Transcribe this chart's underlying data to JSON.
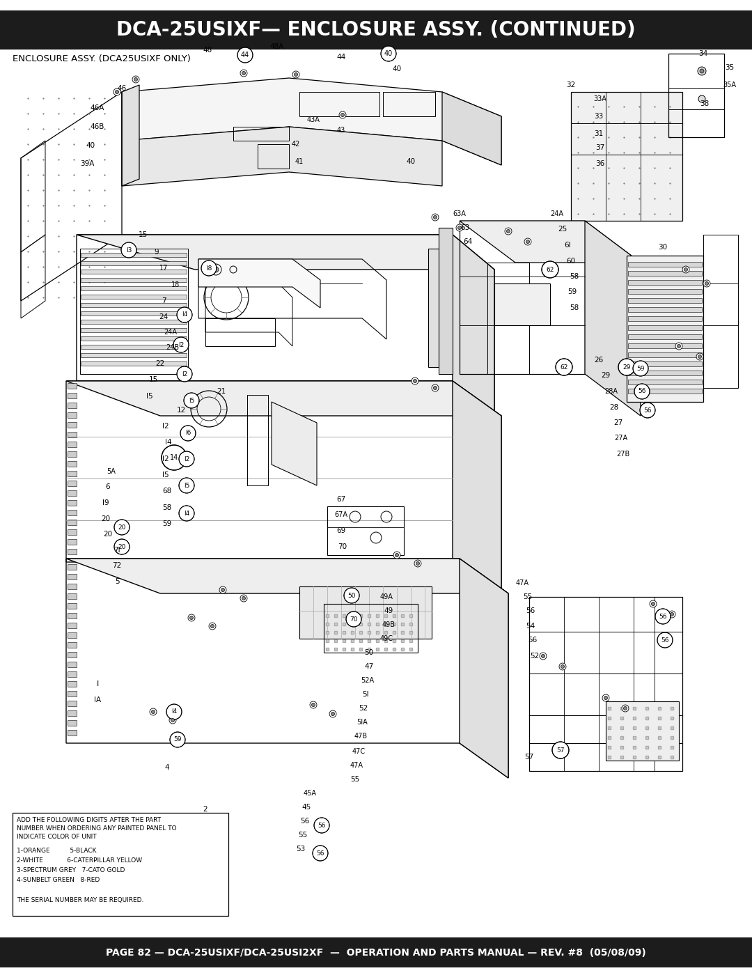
{
  "title_text": "DCA-25USIXF— ENCLOSURE ASSY. (CONTINUED)",
  "title_bg": "#1c1c1c",
  "title_color": "#ffffff",
  "title_fontsize": 20,
  "subtitle_text": "ENCLOSURE ASSY. (DCA25USIXF ONLY)",
  "subtitle_fontsize": 9.5,
  "footer_text": "PAGE 82 — DCA-25USIXF/DCA-25USI2XF  —  OPERATION AND PARTS MANUAL — REV. #8  (05/08/09)",
  "footer_bg": "#1c1c1c",
  "footer_color": "#ffffff",
  "footer_fontsize": 10,
  "legend_line1": "ADD THE FOLLOWING DIGITS AFTER THE PART",
  "legend_line2": "NUMBER WHEN ORDERING ANY PAINTED PANEL TO",
  "legend_line3": "INDICATE COLOR OF UNIT",
  "legend_line4": "1-ORANGE          5-BLACK",
  "legend_line5": "2-WHITE            6-CATERPILLAR YELLOW",
  "legend_line6": "3-SPECTRUM GREY   7-CATO GOLD",
  "legend_line7": "4-SUNBELT GREEN   8-RED",
  "legend_line8": "THE SERIAL NUMBER MAY BE REQUIRED.",
  "legend_fontsize": 6.5,
  "bg_color": "#ffffff",
  "page_width": 10.8,
  "page_height": 13.97
}
